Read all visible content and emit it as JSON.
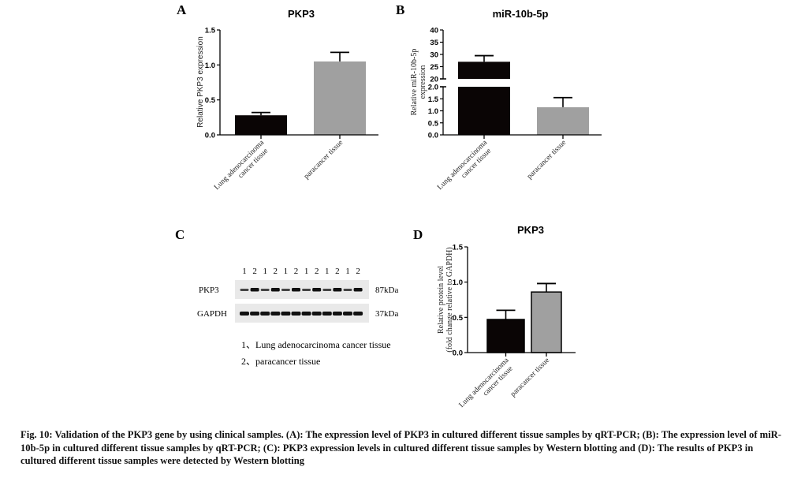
{
  "panels": {
    "A": "A",
    "B": "B",
    "C": "C",
    "D": "D"
  },
  "blot": {
    "lane_labels": [
      "1",
      "2",
      "1",
      "2",
      "1",
      "2",
      "1",
      "2",
      "1",
      "2",
      "1",
      "2"
    ],
    "rows": [
      {
        "name": "PKP3",
        "size": "87kDa"
      },
      {
        "name": "GAPDH",
        "size": "37kDa"
      }
    ],
    "legend": [
      "1、Lung adenocarcinoma cancer tissue",
      "2、paracancer tissue"
    ]
  },
  "caption": "Fig. 10: Validation of the PKP3 gene by using clinical samples. (A): The expression level of PKP3 in cultured different tissue samples by qRT-PCR; (B): The expression level of miR-10b-5p in cultured different tissue samples by qRT-PCR; (C): PKP3 expression levels in cultured different tissue samples by Western blotting and (D): The results of PKP3 in cultured different tissue samples were detected by Western blotting",
  "chart_data": [
    {
      "id": "A",
      "type": "bar",
      "title": "PKP3",
      "ylabel": "Relative PKP3 expression",
      "xlabel": "",
      "categories": [
        [
          "Lung adenocarcinoma",
          "cancer tissue"
        ],
        [
          "paracancer tissue"
        ]
      ],
      "values": [
        0.28,
        1.05
      ],
      "errors": [
        0.04,
        0.13
      ],
      "colors": [
        "#0a0505",
        "#a0a0a0"
      ],
      "ylim": [
        0,
        1.5
      ],
      "yticks": [
        "0.0",
        "0.5",
        "1.0",
        "1.5"
      ],
      "grid": false
    },
    {
      "id": "B",
      "type": "bar",
      "title": "miR-10b-5p",
      "ylabel": "Relative miR-10b-5p expression",
      "xlabel": "",
      "categories": [
        [
          "Lung adenocarcinoma",
          "cancer tissue"
        ],
        [
          "paracancer tissue"
        ]
      ],
      "values": [
        27,
        1.15
      ],
      "errors": [
        2.5,
        0.4
      ],
      "colors": [
        "#0a0505",
        "#a0a0a0"
      ],
      "ylim": [
        0,
        40
      ],
      "axis_break": [
        2,
        20
      ],
      "yticks": [
        "0.0",
        "0.5",
        "1.0",
        "1.5",
        "2.0",
        "20",
        "25",
        "30",
        "35",
        "40"
      ],
      "grid": false
    },
    {
      "id": "D",
      "type": "bar",
      "title": "PKP3",
      "ylabel": "Relative protein level (fold change relative to GAPDH)",
      "xlabel": "",
      "categories": [
        [
          "Lung adenocarcinoma",
          "cancer tissue"
        ],
        [
          "paracancer tissue"
        ]
      ],
      "values": [
        0.47,
        0.86
      ],
      "errors": [
        0.13,
        0.12
      ],
      "colors": [
        "#0a0505",
        "#a0a0a0"
      ],
      "ylim": [
        0,
        1.5
      ],
      "yticks": [
        "0.0",
        "0.5",
        "1.0",
        "1.5"
      ],
      "grid": false
    }
  ]
}
